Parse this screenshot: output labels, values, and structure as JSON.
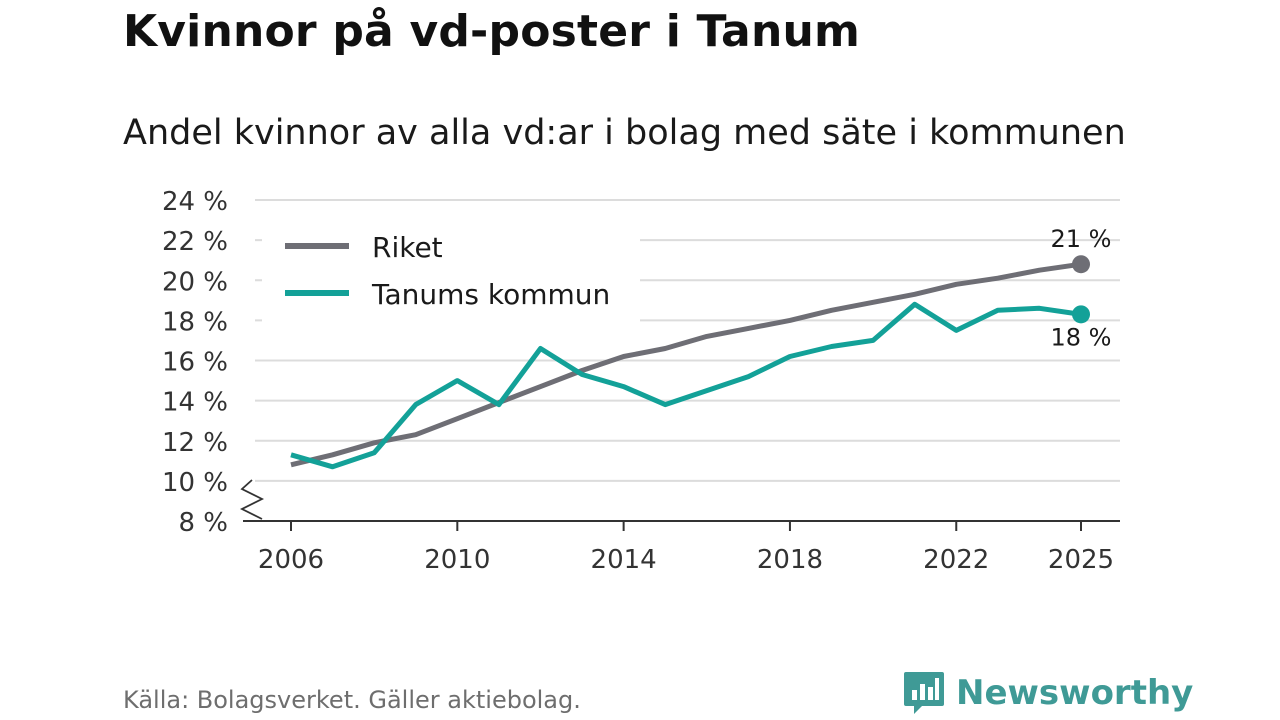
{
  "title": "Kvinnor på vd-poster i Tanum",
  "subtitle": "Andel kvinnor av alla vd:ar i bolag med säte i kommunen",
  "source": "Källa: Bolagsverket. Gäller aktiebolag.",
  "brand": {
    "name": "Newsworthy",
    "icon": "newsworthy-logo-icon"
  },
  "colors": {
    "riket": "#6e6e75",
    "tanum": "#13a198",
    "grid": "#dcdcdc",
    "axis": "#333333",
    "brand": "#3f9a96"
  },
  "chart_data": {
    "type": "line",
    "title": "Andel kvinnor av alla vd:ar i bolag med säte i kommunen",
    "xlabel": "",
    "ylabel": "",
    "x": [
      2006,
      2007,
      2008,
      2009,
      2010,
      2011,
      2012,
      2013,
      2014,
      2015,
      2016,
      2017,
      2018,
      2019,
      2020,
      2021,
      2022,
      2023,
      2024,
      2025
    ],
    "series": [
      {
        "name": "Riket",
        "color": "#6e6e75",
        "values": [
          10.8,
          11.3,
          11.9,
          12.3,
          13.1,
          13.9,
          14.7,
          15.5,
          16.2,
          16.6,
          17.2,
          17.6,
          18.0,
          18.5,
          18.9,
          19.3,
          19.8,
          20.1,
          20.5,
          20.8
        ],
        "end_label": "21 %"
      },
      {
        "name": "Tanums kommun",
        "color": "#13a198",
        "values": [
          11.3,
          10.7,
          11.4,
          13.8,
          15.0,
          13.8,
          16.6,
          15.3,
          14.7,
          13.8,
          14.5,
          15.2,
          16.2,
          16.7,
          17.0,
          18.8,
          17.5,
          18.5,
          18.6,
          18.3
        ],
        "end_label": "18 %"
      }
    ],
    "ylim": [
      8,
      24
    ],
    "yticks": [
      8,
      10,
      12,
      14,
      16,
      18,
      20,
      22,
      24
    ],
    "ytick_labels": [
      "8 %",
      "10 %",
      "12 %",
      "14 %",
      "16 %",
      "18 %",
      "20 %",
      "22 %",
      "24 %"
    ],
    "xticks": [
      2006,
      2010,
      2014,
      2018,
      2022,
      2025
    ],
    "xtick_labels": [
      "2006",
      "2010",
      "2014",
      "2018",
      "2022",
      "2025"
    ],
    "legend": [
      "Riket",
      "Tanums kommun"
    ],
    "legend_position": "top-left",
    "axis_break": true,
    "grid": true
  }
}
